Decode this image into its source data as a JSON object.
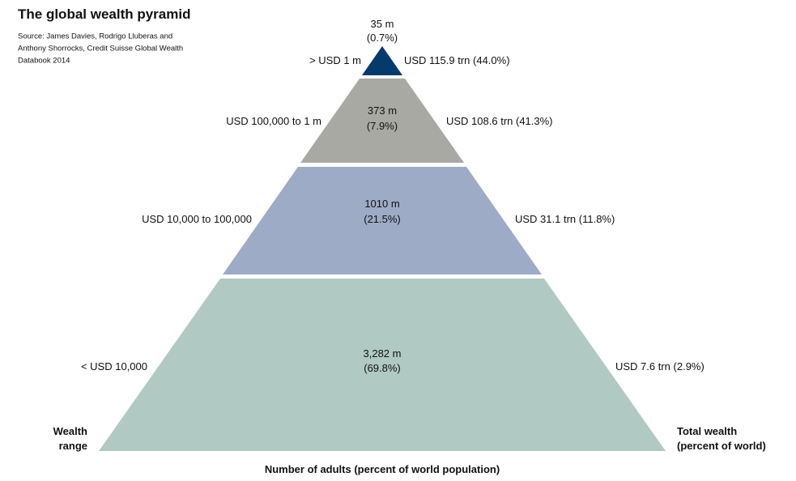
{
  "header": {
    "title": "The global wealth pyramid",
    "source": [
      "Source: James Davies, Rodrigo Lluberas and",
      "Anthony Shorrocks, Credit Suisse Global Wealth",
      "Databook 2014"
    ]
  },
  "tiers": [
    {
      "range": "> USD 1 m",
      "adults": "35 m",
      "population_share": "(0.7%)",
      "wealth": "USD 115.9 trn (44.0%)"
    },
    {
      "range": "USD 100,000 to 1 m",
      "adults": "373 m",
      "population_share": "(7.9%)",
      "wealth": "USD 108.6 trn (41.3%)"
    },
    {
      "range": "USD 10,000 to 100,000",
      "adults": "1010 m",
      "population_share": "(21.5%)",
      "wealth": "USD 31.1 trn (11.8%)"
    },
    {
      "range": "< USD 10,000",
      "adults": "3,282 m",
      "population_share": "(69.8%)",
      "wealth": "USD 7.6 trn (2.9%)"
    }
  ],
  "labels": {
    "left": [
      "Wealth",
      "range"
    ],
    "right": [
      "Total wealth",
      "(percent of world)"
    ],
    "bottom": "Number of adults (percent of world population)"
  }
}
